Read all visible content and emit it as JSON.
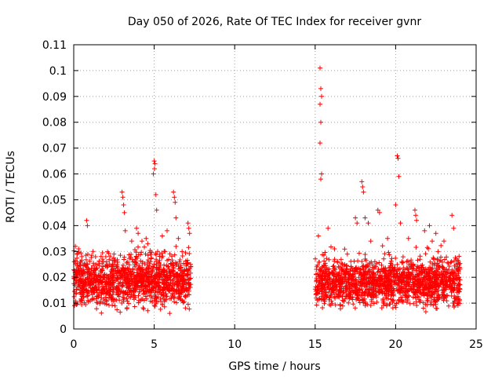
{
  "chart_data": {
    "type": "scatter",
    "title": "Day 050 of 2026, Rate Of TEC Index for receiver gvnr",
    "xlabel": "GPS time / hours",
    "ylabel": "ROTI / TECUs",
    "xlim": [
      0,
      25
    ],
    "ylim": [
      0,
      0.11
    ],
    "xticks": [
      0,
      5,
      10,
      15,
      20,
      25
    ],
    "xtick_labels": [
      "0",
      "5",
      "10",
      "15",
      "20",
      "25"
    ],
    "yticks": [
      0,
      0.01,
      0.02,
      0.03,
      0.04,
      0.05,
      0.06,
      0.07,
      0.08,
      0.09,
      0.1,
      0.11
    ],
    "ytick_labels": [
      "0",
      "0.01",
      "0.02",
      "0.03",
      "0.04",
      "0.05",
      "0.06",
      "0.07",
      "0.08",
      "0.09",
      "0.1",
      "0.11"
    ],
    "grid": true,
    "marker": "+",
    "colors": {
      "series": "#ff0000",
      "grid": "#a0a0a0",
      "axis": "#000000"
    },
    "series": [
      {
        "segments": [
          {
            "x_range": [
              0,
              7.3
            ],
            "typical_range": [
              0.005,
              0.027
            ],
            "peaks": [
              [
                0.1,
                0.032
              ],
              [
                0.3,
                0.031
              ],
              [
                0.5,
                0.028
              ],
              [
                0.8,
                0.042
              ],
              [
                0.85,
                0.04
              ],
              [
                1.2,
                0.03
              ],
              [
                1.8,
                0.027
              ],
              [
                2.5,
                0.029
              ],
              [
                3.0,
                0.053
              ],
              [
                3.05,
                0.051
              ],
              [
                3.1,
                0.048
              ],
              [
                3.15,
                0.045
              ],
              [
                3.2,
                0.038
              ],
              [
                3.6,
                0.034
              ],
              [
                3.9,
                0.039
              ],
              [
                4.0,
                0.037
              ],
              [
                4.5,
                0.035
              ],
              [
                4.6,
                0.033
              ],
              [
                5.0,
                0.065
              ],
              [
                5.05,
                0.064
              ],
              [
                5.02,
                0.062
              ],
              [
                4.95,
                0.06
              ],
              [
                5.1,
                0.052
              ],
              [
                5.15,
                0.046
              ],
              [
                5.5,
                0.036
              ],
              [
                5.8,
                0.038
              ],
              [
                6.2,
                0.053
              ],
              [
                6.25,
                0.051
              ],
              [
                6.3,
                0.049
              ],
              [
                6.35,
                0.043
              ],
              [
                6.5,
                0.035
              ],
              [
                7.1,
                0.041
              ],
              [
                7.15,
                0.039
              ],
              [
                7.2,
                0.037
              ]
            ]
          },
          {
            "x_range": [
              15.0,
              24.0
            ],
            "typical_range": [
              0.005,
              0.025
            ],
            "peaks": [
              [
                15.2,
                0.036
              ],
              [
                15.3,
                0.101
              ],
              [
                15.35,
                0.093
              ],
              [
                15.4,
                0.09
              ],
              [
                15.3,
                0.087
              ],
              [
                15.35,
                0.08
              ],
              [
                15.3,
                0.072
              ],
              [
                15.4,
                0.06
              ],
              [
                15.35,
                0.058
              ],
              [
                15.8,
                0.039
              ],
              [
                16.2,
                0.031
              ],
              [
                17.0,
                0.029
              ],
              [
                17.5,
                0.043
              ],
              [
                17.6,
                0.041
              ],
              [
                17.9,
                0.057
              ],
              [
                17.95,
                0.055
              ],
              [
                18.0,
                0.053
              ],
              [
                18.1,
                0.043
              ],
              [
                18.3,
                0.041
              ],
              [
                18.9,
                0.046
              ],
              [
                19.0,
                0.045
              ],
              [
                19.5,
                0.035
              ],
              [
                20.0,
                0.048
              ],
              [
                20.1,
                0.067
              ],
              [
                20.15,
                0.066
              ],
              [
                20.2,
                0.059
              ],
              [
                20.3,
                0.041
              ],
              [
                20.8,
                0.035
              ],
              [
                21.2,
                0.046
              ],
              [
                21.25,
                0.044
              ],
              [
                21.3,
                0.042
              ],
              [
                21.8,
                0.038
              ],
              [
                22.1,
                0.04
              ],
              [
                22.5,
                0.037
              ],
              [
                23.0,
                0.034
              ],
              [
                23.5,
                0.044
              ],
              [
                23.6,
                0.039
              ],
              [
                23.9,
                0.026
              ]
            ]
          }
        ]
      }
    ]
  }
}
